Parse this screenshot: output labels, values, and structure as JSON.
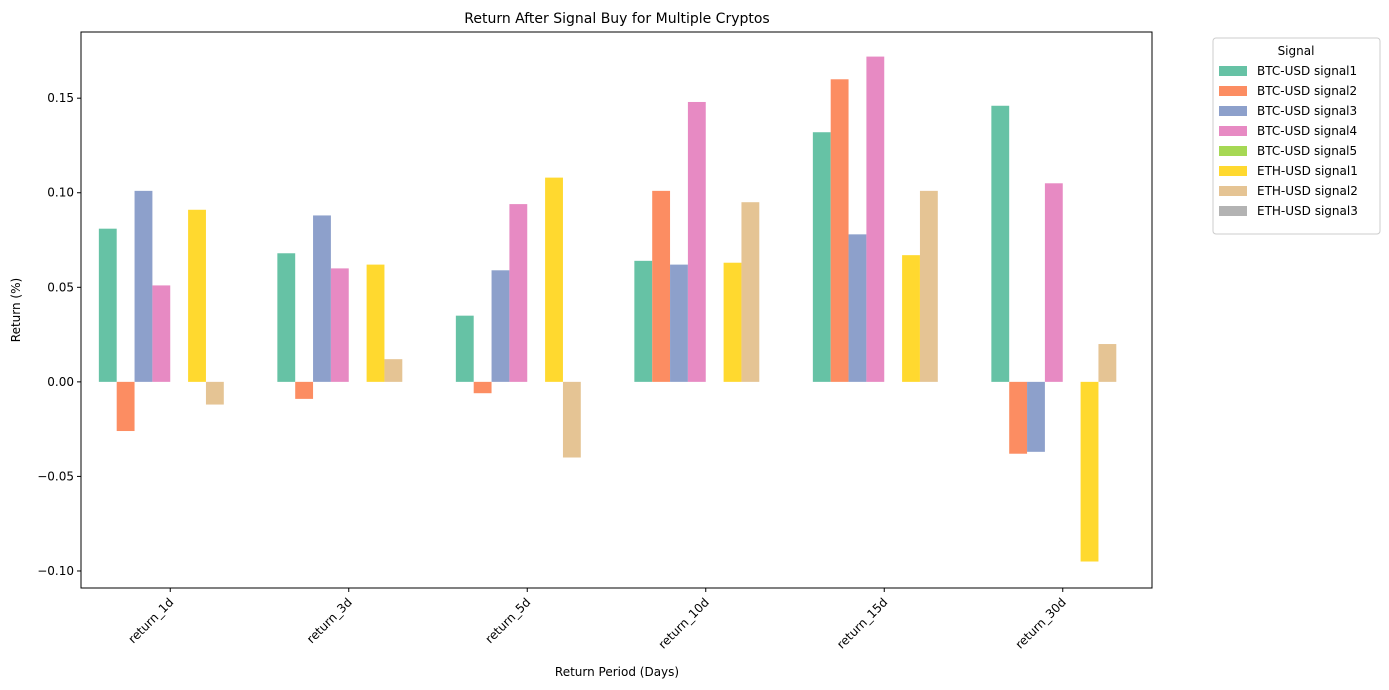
{
  "chart_data": {
    "type": "bar",
    "title": "Return After Signal Buy for Multiple Cryptos",
    "xlabel": "Return Period (Days)",
    "ylabel": "Return (%)",
    "ylim": [
      -0.109,
      0.185
    ],
    "yticks": [
      -0.1,
      -0.05,
      0.0,
      0.05,
      0.1,
      0.15
    ],
    "ytick_labels": [
      "−0.10",
      "−0.05",
      "0.00",
      "0.05",
      "0.10",
      "0.15"
    ],
    "grid": false,
    "legend_title": "Signal",
    "legend_position": "outside-top-right",
    "categories": [
      "return_1d",
      "return_3d",
      "return_5d",
      "return_10d",
      "return_15d",
      "return_30d"
    ],
    "series": [
      {
        "name": "BTC-USD signal1",
        "color": "#66c2a5",
        "values": [
          0.081,
          0.068,
          0.035,
          0.064,
          0.132,
          0.146
        ]
      },
      {
        "name": "BTC-USD signal2",
        "color": "#fc8d62",
        "values": [
          -0.026,
          -0.009,
          -0.006,
          0.101,
          0.16,
          -0.038
        ]
      },
      {
        "name": "BTC-USD signal3",
        "color": "#8da0cb",
        "values": [
          0.101,
          0.088,
          0.059,
          0.062,
          0.078,
          -0.037
        ]
      },
      {
        "name": "BTC-USD signal4",
        "color": "#e78ac3",
        "values": [
          0.051,
          0.06,
          0.094,
          0.148,
          0.172,
          0.105
        ]
      },
      {
        "name": "BTC-USD signal5",
        "color": "#a6d854",
        "values": [
          null,
          null,
          null,
          null,
          null,
          null
        ]
      },
      {
        "name": "ETH-USD signal1",
        "color": "#ffd92f",
        "values": [
          0.091,
          0.062,
          0.108,
          0.063,
          0.067,
          -0.095
        ]
      },
      {
        "name": "ETH-USD signal2",
        "color": "#e5c494",
        "values": [
          -0.012,
          0.012,
          -0.04,
          0.095,
          0.101,
          0.02
        ]
      },
      {
        "name": "ETH-USD signal3",
        "color": "#b3b3b3",
        "values": [
          null,
          null,
          null,
          null,
          null,
          null
        ]
      }
    ]
  }
}
